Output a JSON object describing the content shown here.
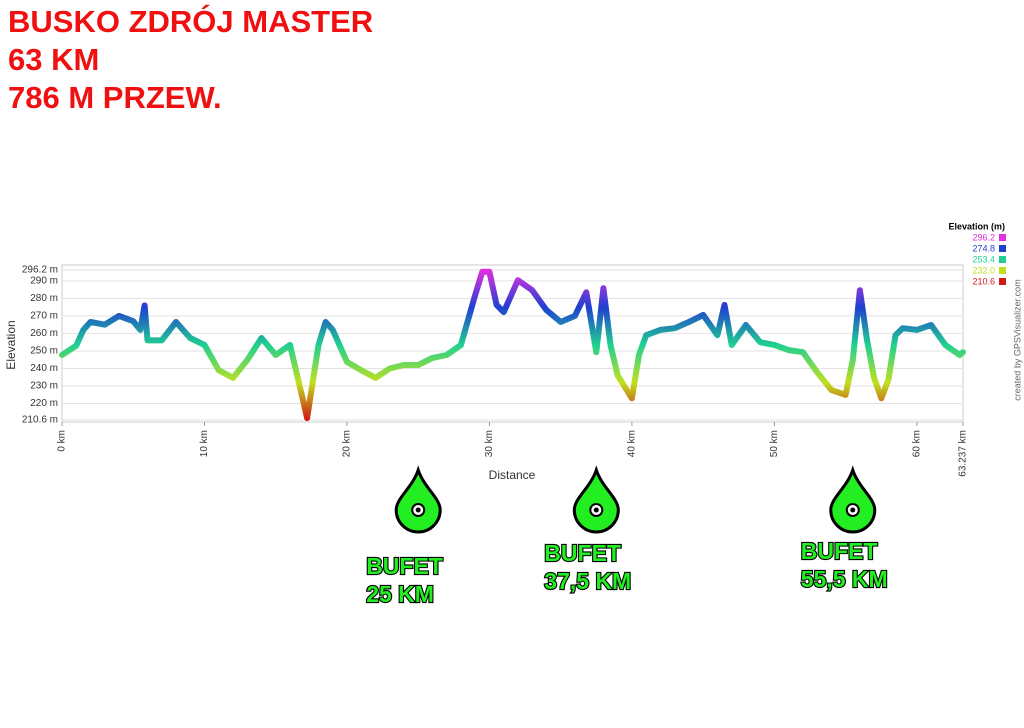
{
  "chart_data": {
    "type": "line",
    "title_lines": [
      "BUSKO ZDRÓJ MASTER",
      "63 KM",
      "786 M PRZEW."
    ],
    "x_label": "Distance",
    "y_label": "Elevation",
    "credit": "created by GPSVisualizer.com",
    "x": [
      0,
      1,
      1.5,
      2,
      3,
      4,
      5,
      5.5,
      5.8,
      6,
      7,
      8,
      9,
      10,
      11,
      12,
      13,
      14,
      15,
      16,
      17,
      17.2,
      18,
      18.5,
      19,
      20,
      21,
      22,
      23,
      24,
      25,
      26,
      27,
      28,
      29,
      29.5,
      30,
      30.5,
      31,
      32,
      33,
      34,
      35,
      36,
      36.8,
      37.5,
      38,
      38.5,
      39,
      40,
      40.5,
      41,
      42,
      43,
      44,
      45,
      46,
      46.5,
      47,
      48,
      49,
      50,
      51,
      52,
      53,
      54,
      55,
      55.5,
      56,
      56.5,
      57,
      57.5,
      58,
      58.5,
      59,
      60,
      61,
      62,
      63,
      63.237
    ],
    "values": [
      247.7,
      253,
      262,
      266.5,
      265,
      270,
      267,
      262,
      276,
      256,
      256,
      266.5,
      257.4,
      253.4,
      239,
      234.6,
      244.8,
      257.4,
      247.7,
      253.4,
      219,
      211.7,
      253.4,
      266.5,
      262,
      243.7,
      239,
      234.6,
      240,
      242,
      242,
      246,
      247.7,
      253.4,
      282,
      295.2,
      295.2,
      276.3,
      272.2,
      290.4,
      284.7,
      273.3,
      266.5,
      270,
      283.5,
      249.3,
      285.8,
      253.4,
      236,
      223,
      247.7,
      259,
      262,
      263,
      266.5,
      270.5,
      259,
      276.3,
      253.4,
      264.8,
      255,
      253.4,
      250.5,
      249.3,
      237.9,
      227.7,
      224.9,
      244.8,
      284.7,
      256.3,
      234.6,
      223,
      233.5,
      259,
      263,
      262,
      264.8,
      253.4,
      247.7,
      249.3
    ],
    "xlim": [
      0,
      63.237
    ],
    "ylim": [
      210.6,
      296.2
    ],
    "xticks": [
      {
        "value": 0,
        "label": "0 km"
      },
      {
        "value": 10,
        "label": "10 km"
      },
      {
        "value": 20,
        "label": "20 km"
      },
      {
        "value": 30,
        "label": "30 km"
      },
      {
        "value": 40,
        "label": "40 km"
      },
      {
        "value": 50,
        "label": "50 km"
      },
      {
        "value": 60,
        "label": "60 km"
      },
      {
        "value": 63.237,
        "label": "63.237 km"
      }
    ],
    "yticks": [
      {
        "value": 210.6,
        "label": "210.6 m"
      },
      {
        "value": 220,
        "label": "220 m"
      },
      {
        "value": 230,
        "label": "230 m"
      },
      {
        "value": 240,
        "label": "240 m"
      },
      {
        "value": 250,
        "label": "250 m"
      },
      {
        "value": 260,
        "label": "260 m"
      },
      {
        "value": 270,
        "label": "270 m"
      },
      {
        "value": 280,
        "label": "280 m"
      },
      {
        "value": 290,
        "label": "290 m"
      },
      {
        "value": 296.2,
        "label": "296.2 m"
      }
    ],
    "grid": true,
    "colorscale": {
      "title": "Elevation (m)",
      "values": [
        296.2,
        274.8,
        253.4,
        232,
        210.6
      ],
      "value_labels": [
        "296.2",
        "274.8",
        "253.4",
        "232.0",
        "210.6"
      ],
      "colors": [
        "#e030e0",
        "#2040d0",
        "#20d090",
        "#c0e020",
        "#d01818"
      ]
    },
    "annotations": [
      {
        "x": 25,
        "lines": [
          "BUFET",
          "25 KM"
        ]
      },
      {
        "x": 37.5,
        "lines": [
          "BUFET",
          "37,5 KM"
        ]
      },
      {
        "x": 55.5,
        "lines": [
          "BUFET",
          "55,5 KM"
        ]
      }
    ]
  }
}
